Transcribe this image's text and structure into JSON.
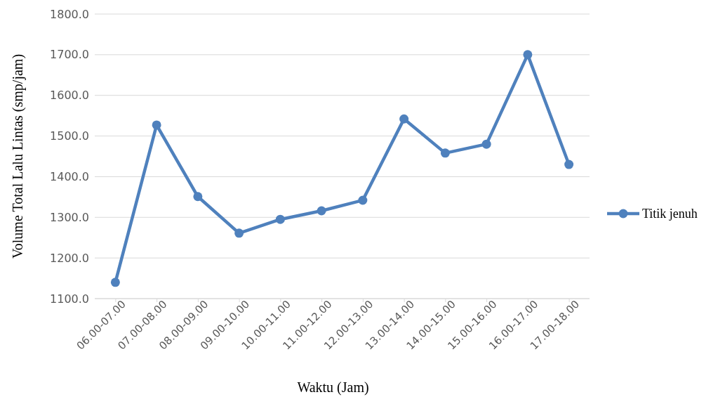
{
  "chart_data": {
    "type": "line",
    "xlabel": "Waktu  (Jam)",
    "ylabel": "Volume Total Lalu Lintas (smp/jam)",
    "categories": [
      "06.00-07.00",
      "07.00-08.00",
      "08.00-09.00",
      "09.00-10.00",
      "10.00-11.00",
      "11.00-12.00",
      "12.00-13.00",
      "13.00-14.00",
      "14.00-15.00",
      "15.00-16.00",
      "16.00-17.00",
      "17.00-18.00"
    ],
    "series": [
      {
        "name": "Titik jenuh",
        "color": "#4f81bd",
        "values": [
          1140,
          1527,
          1351,
          1261,
          1295,
          1316,
          1342,
          1542,
          1458,
          1480,
          1700,
          1430
        ]
      }
    ],
    "ylim": [
      1100,
      1800
    ],
    "yticks": [
      {
        "value": 1100,
        "label": "1100.0"
      },
      {
        "value": 1200,
        "label": "1200.0"
      },
      {
        "value": 1300,
        "label": "1300.0"
      },
      {
        "value": 1400,
        "label": "1400.0"
      },
      {
        "value": 1500,
        "label": "1500.0"
      },
      {
        "value": 1600,
        "label": "1600.0"
      },
      {
        "value": 1700,
        "label": "1700.0"
      },
      {
        "value": 1800,
        "label": "1800.0"
      }
    ],
    "grid": "y",
    "legend": "right",
    "marker": "circle",
    "line_style": "solid"
  }
}
